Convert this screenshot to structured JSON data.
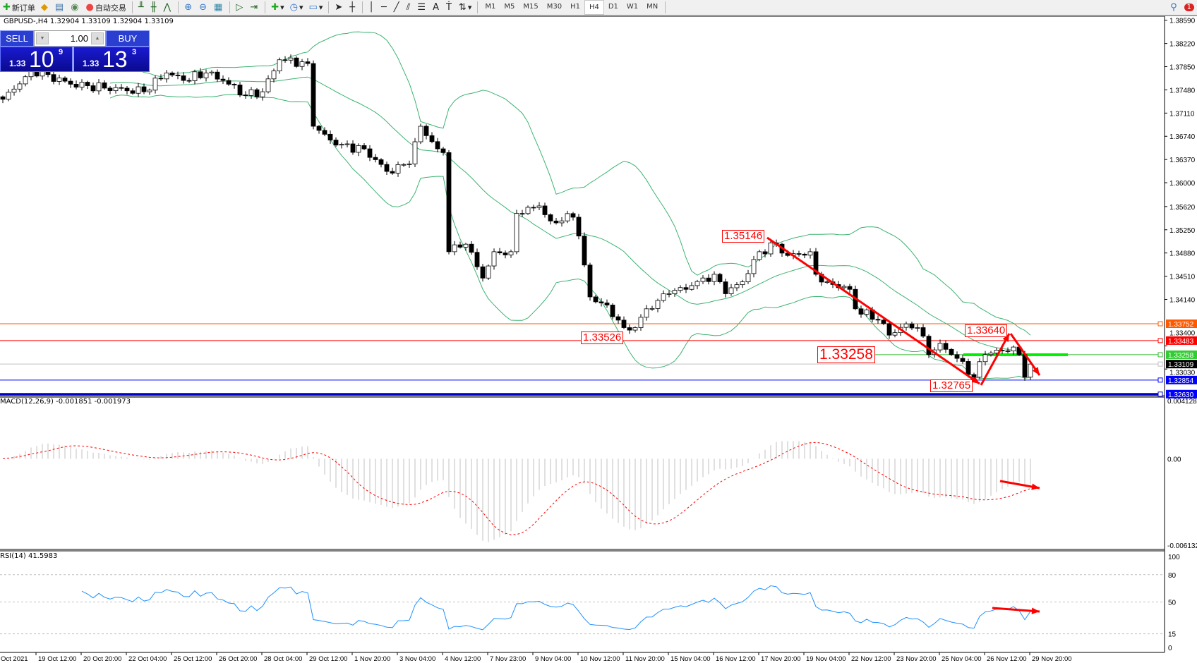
{
  "toolbar": {
    "new_order": "新订单",
    "auto_trading": "自动交易",
    "timeframes": [
      "M1",
      "M5",
      "M15",
      "M30",
      "H1",
      "H4",
      "D1",
      "W1",
      "MN"
    ],
    "active_timeframe": "H4",
    "notification_count": "1"
  },
  "chart": {
    "header": "GBPUSD-,H4  1.32904 1.33109 1.32904 1.33109",
    "symbol": "GBPUSD-",
    "timeframe": "H4"
  },
  "trade_panel": {
    "sell_label": "SELL",
    "buy_label": "BUY",
    "lot": "1.00",
    "sell_prefix": "1.33",
    "sell_big": "10",
    "sell_point": "9",
    "buy_prefix": "1.33",
    "buy_big": "13",
    "buy_point": "3",
    "accent": "#2a3fd0"
  },
  "price_axis": {
    "ticks": [
      "1.38590",
      "1.38220",
      "1.37850",
      "1.37480",
      "1.37110",
      "1.36740",
      "1.36370",
      "1.36000",
      "1.35620",
      "1.35250",
      "1.34880",
      "1.34510",
      "1.34140",
      "1.33400",
      "1.33030"
    ]
  },
  "levels": [
    {
      "price": "1.33752",
      "color": "#ff5a00",
      "label_bg": "#ff5a00",
      "width": 1
    },
    {
      "price": "1.33483",
      "color": "#ff0000",
      "label_bg": "#ff0000",
      "width": 1
    },
    {
      "price": "1.33258",
      "color": "#33bb33",
      "label_bg": "#33cc33",
      "width": 1
    },
    {
      "price": "1.33109",
      "color": "#c0c0c0",
      "label_bg": "#000000",
      "width": 1
    },
    {
      "price": "1.32854",
      "color": "#0000ff",
      "label_bg": "#0000ff",
      "width": 1
    },
    {
      "price": "1.32630",
      "color": "#0000cc",
      "label_bg": "#0000ff",
      "width": 3
    }
  ],
  "annotations": [
    "1.35146",
    "1.33526",
    "1.33258",
    "1.32765",
    "1.33640"
  ],
  "time_axis": [
    "Oct 2021",
    "19 Oct 12:00",
    "20 Oct 20:00",
    "22 Oct 04:00",
    "25 Oct 12:00",
    "26 Oct 20:00",
    "28 Oct 04:00",
    "29 Oct 12:00",
    "1 Nov 20:00",
    "3 Nov 04:00",
    "4 Nov 12:00",
    "7 Nov 23:00",
    "9 Nov 04:00",
    "10 Nov 12:00",
    "11 Nov 20:00",
    "15 Nov 04:00",
    "16 Nov 12:00",
    "17 Nov 20:00",
    "19 Nov 04:00",
    "22 Nov 12:00",
    "23 Nov 20:00",
    "25 Nov 04:00",
    "26 Nov 12:00",
    "29 Nov 20:00"
  ],
  "macd": {
    "label": "MACD(12,26,9) -0.001851 -0.001973",
    "axis": [
      "0.004128",
      "0.00",
      "-0.006132"
    ],
    "histogram_color": "#c0c0c0",
    "signal_color": "#ff0000"
  },
  "rsi": {
    "label": "RSI(14) 41.5983",
    "axis": [
      "100",
      "80",
      "50",
      "15",
      "0"
    ],
    "line_color": "#1e90ff"
  },
  "chart_data": {
    "type": "candlestick",
    "price_path": [
      [
        0,
        1.3733
      ],
      [
        4,
        1.3769
      ],
      [
        5,
        1.3781
      ],
      [
        12,
        1.3757
      ],
      [
        25,
        1.3745
      ],
      [
        29,
        1.3775
      ],
      [
        32,
        1.3763
      ],
      [
        36,
        1.3775
      ],
      [
        39,
        1.3763
      ],
      [
        43,
        1.3739
      ],
      [
        46,
        1.3745
      ],
      [
        49,
        1.3796
      ],
      [
        54,
        1.379
      ],
      [
        55,
        1.369
      ],
      [
        59,
        1.366
      ],
      [
        64,
        1.3654
      ],
      [
        68,
        1.3618
      ],
      [
        72,
        1.363
      ],
      [
        74,
        1.369
      ],
      [
        77,
        1.3654
      ],
      [
        78,
        1.3648
      ],
      [
        79,
        1.349
      ],
      [
        82,
        1.3502
      ],
      [
        85,
        1.3448
      ],
      [
        87,
        1.349
      ],
      [
        90,
        1.349
      ],
      [
        91,
        1.3551
      ],
      [
        95,
        1.3563
      ],
      [
        97,
        1.3539
      ],
      [
        101,
        1.3545
      ],
      [
        102,
        1.3515
      ],
      [
        104,
        1.3418
      ],
      [
        107,
        1.3405
      ],
      [
        110,
        1.3369
      ],
      [
        112,
        1.3369
      ],
      [
        114,
        1.3399
      ],
      [
        118,
        1.3423
      ],
      [
        122,
        1.3436
      ],
      [
        126,
        1.3454
      ],
      [
        128,
        1.3423
      ],
      [
        131,
        1.3442
      ],
      [
        134,
        1.349
      ],
      [
        137,
        1.3502
      ],
      [
        139,
        1.3484
      ],
      [
        143,
        1.349
      ],
      [
        144,
        1.3454
      ],
      [
        146,
        1.3442
      ],
      [
        150,
        1.343
      ],
      [
        151,
        1.3399
      ],
      [
        155,
        1.3381
      ],
      [
        157,
        1.3357
      ],
      [
        160,
        1.3375
      ],
      [
        162,
        1.3369
      ],
      [
        164,
        1.3326
      ],
      [
        166,
        1.3344
      ],
      [
        169,
        1.332
      ],
      [
        172,
        1.329
      ],
      [
        174,
        1.3326
      ],
      [
        177,
        1.3332
      ],
      [
        179,
        1.3338
      ],
      [
        180,
        1.3326
      ],
      [
        181,
        1.329
      ],
      [
        182,
        1.33109
      ]
    ],
    "indicators": [
      "Bollinger Bands(20,2)",
      "MACD(12,26,9)",
      "RSI(14)"
    ],
    "price_range": [
      1.3263,
      1.3859
    ],
    "colors": {
      "bull": "#ffffff",
      "bear": "#000000",
      "bands": "#3cb371"
    }
  }
}
